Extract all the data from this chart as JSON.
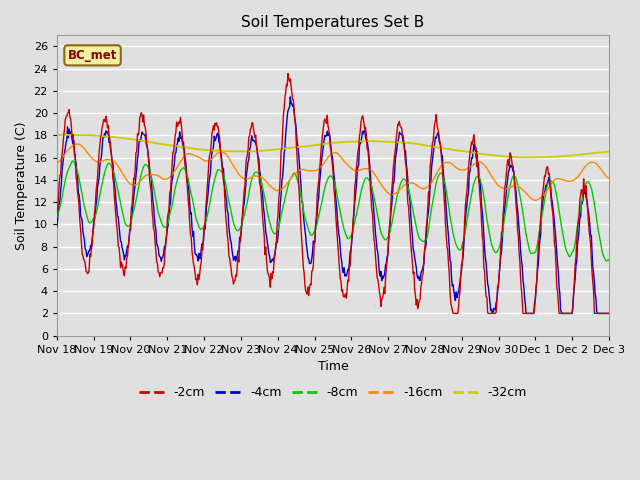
{
  "title": "Soil Temperatures Set B",
  "xlabel": "Time",
  "ylabel": "Soil Temperature (C)",
  "annotation": "BC_met",
  "legend": [
    "-2cm",
    "-4cm",
    "-8cm",
    "-16cm",
    "-32cm"
  ],
  "legend_colors": [
    "#cc0000",
    "#0000cc",
    "#00cc00",
    "#ff8800",
    "#cccc00"
  ],
  "ylim": [
    0,
    27
  ],
  "yticks": [
    0,
    2,
    4,
    6,
    8,
    10,
    12,
    14,
    16,
    18,
    20,
    22,
    24,
    26
  ],
  "bg_color": "#e0e0e0",
  "plot_bg_color": "#e0e0e0",
  "grid_color": "#ffffff",
  "date_labels": [
    "Nov 18",
    "Nov 19",
    "Nov 20",
    "Nov 21",
    "Nov 22",
    "Nov 23",
    "Nov 24",
    "Nov 25",
    "Nov 26",
    "Nov 27",
    "Nov 28",
    "Nov 29",
    "Nov 30",
    "Dec 1",
    "Dec 2",
    "Dec 3"
  ],
  "date_positions": [
    0,
    1,
    2,
    3,
    4,
    5,
    6,
    7,
    8,
    9,
    10,
    11,
    12,
    13,
    14,
    15
  ]
}
